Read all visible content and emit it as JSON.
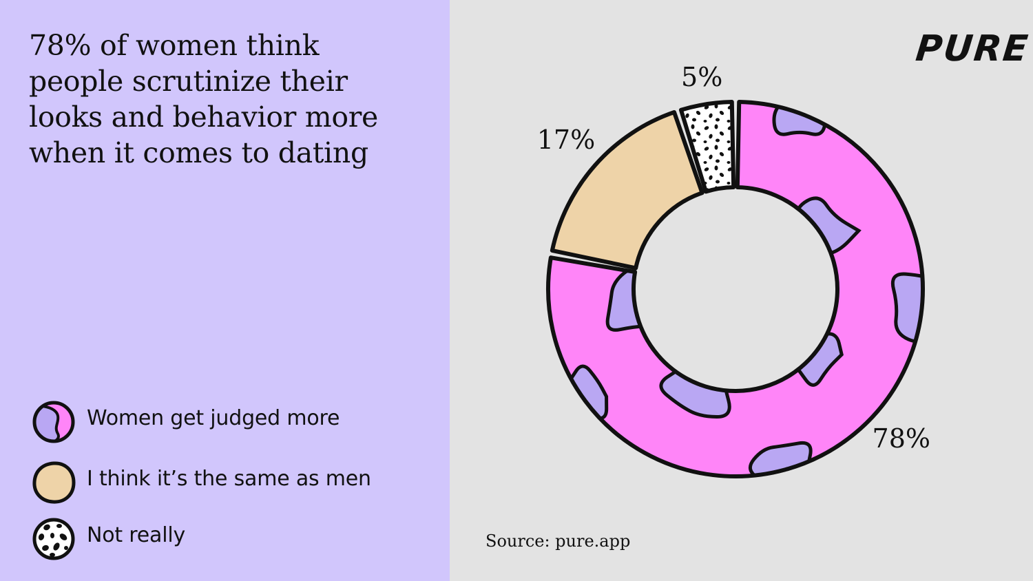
{
  "header": {
    "title": "78% of women think people scrutinize their looks and behavior more when it comes to dating"
  },
  "brand": {
    "logo_text": "PURE"
  },
  "footer": {
    "source": "Source: pure.app"
  },
  "legend": {
    "items": [
      {
        "label": "Women get judged more",
        "icon": "blob-pattern-icon"
      },
      {
        "label": "I think it’s the same as men",
        "icon": "beige-circle-icon"
      },
      {
        "label": "Not really",
        "icon": "speckle-pattern-icon"
      }
    ]
  },
  "colors": {
    "left_panel": "#d1c6fc",
    "right_panel": "#e3e3e3",
    "women_judged": "#ff85f8",
    "women_judged_spots": "#b9a7f3",
    "same_as_men": "#eed3a8",
    "not_really": "#ffffff",
    "outline": "#111111"
  },
  "chart_data": {
    "type": "pie",
    "donut": true,
    "title": "78% of women think people scrutinize their looks and behavior more when it comes to dating",
    "categories": [
      "Women get judged more",
      "I think it’s the same as men",
      "Not really"
    ],
    "values": [
      78,
      17,
      5
    ],
    "labels": [
      "78%",
      "17%",
      "5%"
    ],
    "legend_position": "bottom-left"
  }
}
